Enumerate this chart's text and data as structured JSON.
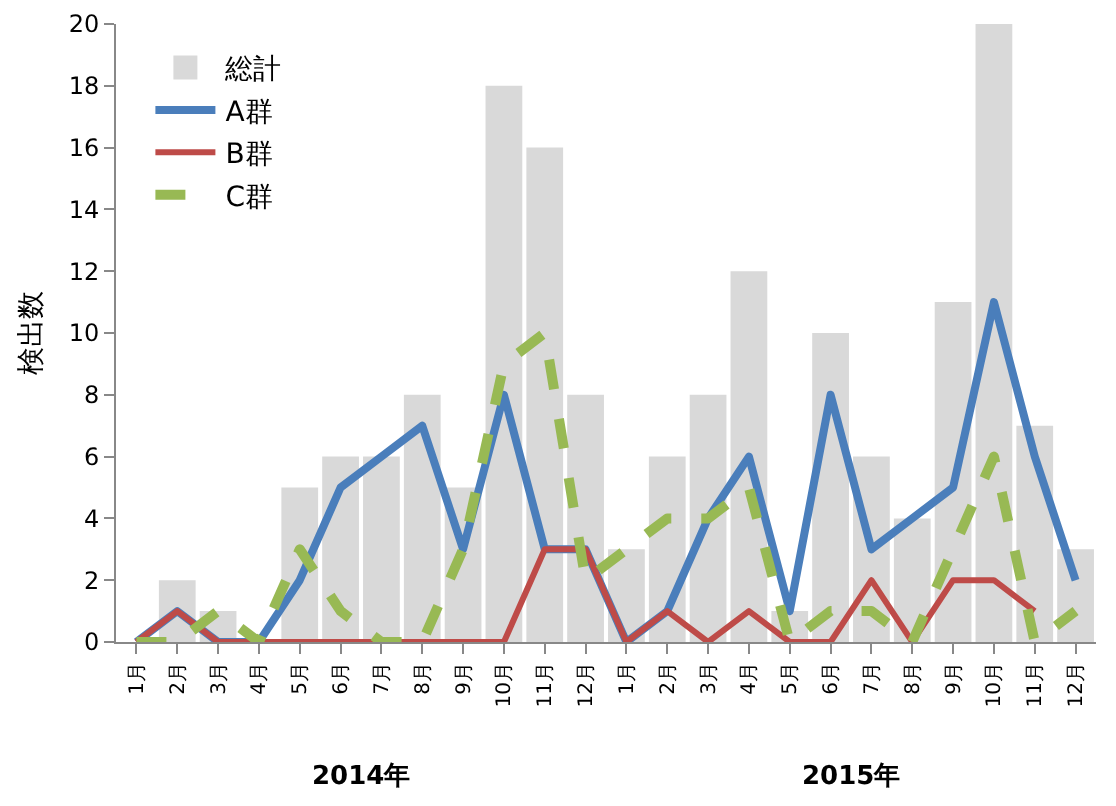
{
  "chart_data": {
    "type": "bar",
    "ylabel": "検出数",
    "categories": [
      "1月",
      "2月",
      "3月",
      "4月",
      "5月",
      "6月",
      "7月",
      "8月",
      "9月",
      "10月",
      "11月",
      "12月",
      "1月",
      "2月",
      "3月",
      "4月",
      "5月",
      "6月",
      "7月",
      "8月",
      "9月",
      "10月",
      "11月",
      "12月"
    ],
    "series": [
      {
        "name": "総計",
        "color": "#d9d9d9",
        "values": [
          0,
          2,
          1,
          0,
          5,
          6,
          6,
          8,
          5,
          18,
          16,
          8,
          3,
          6,
          8,
          12,
          1,
          10,
          6,
          4,
          11,
          20,
          7,
          3
        ]
      },
      {
        "name": "A群",
        "type": "line",
        "color": "#4a7ebb",
        "line_style": "solid",
        "values": [
          0,
          1,
          0,
          0,
          2,
          5,
          6,
          7,
          3,
          8,
          3,
          3,
          0,
          1,
          4,
          6,
          1,
          8,
          3,
          4,
          5,
          11,
          6,
          2
        ]
      },
      {
        "name": "B群",
        "type": "line",
        "color": "#be4b48",
        "line_style": "solid",
        "values": [
          0,
          1,
          0,
          0,
          0,
          0,
          0,
          0,
          0,
          0,
          3,
          3,
          0,
          1,
          0,
          1,
          0,
          0,
          2,
          0,
          2,
          2,
          1,
          null
        ]
      },
      {
        "name": "C群",
        "type": "line",
        "color": "#98b954",
        "line_style": "dashed",
        "values": [
          0,
          0,
          1,
          0,
          3,
          1,
          0,
          0,
          3,
          9,
          10,
          2,
          3,
          4,
          4,
          5,
          0,
          1,
          1,
          0,
          3,
          6,
          0,
          1
        ]
      }
    ],
    "annotations": [
      "2014年",
      "2015年"
    ],
    "ylim": [
      0,
      20
    ],
    "yticks": [
      0,
      2,
      4,
      6,
      8,
      10,
      12,
      14,
      16,
      18,
      20
    ],
    "grid": false,
    "legend": "top left",
    "marker": "none"
  }
}
